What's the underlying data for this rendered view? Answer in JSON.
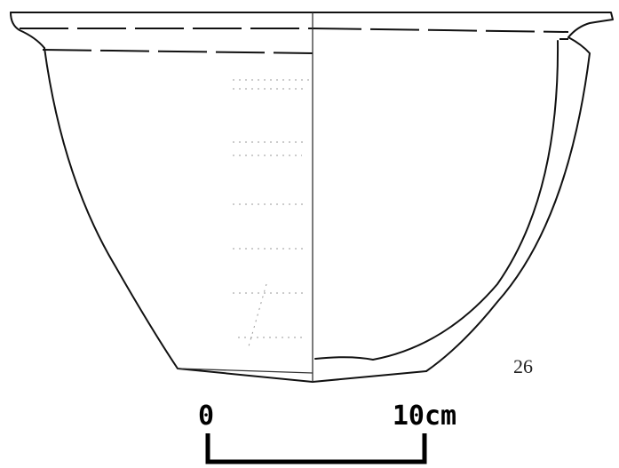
{
  "figure_number": "26",
  "scale_bar": {
    "start": "0",
    "end": "10cm"
  }
}
